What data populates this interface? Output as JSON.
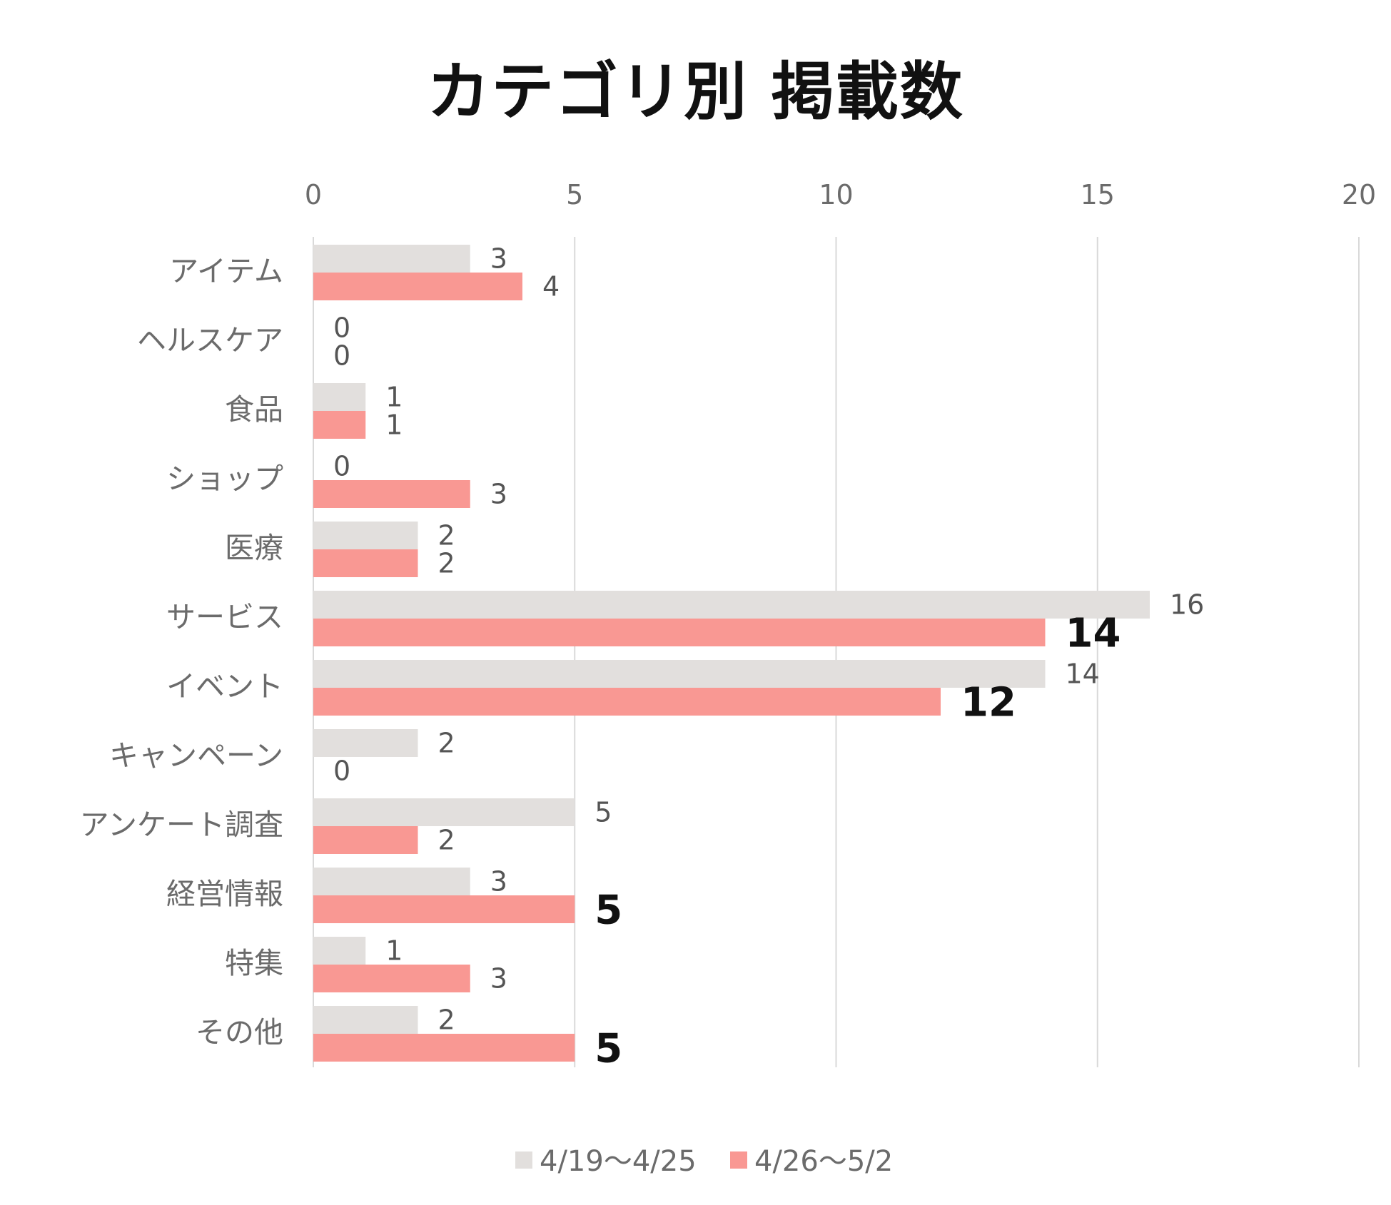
{
  "chart_data": {
    "type": "bar",
    "orientation": "horizontal",
    "title": "カテゴリ別 掲載数",
    "categories": [
      "アイテム",
      "ヘルスケア",
      "食品",
      "ショップ",
      "医療",
      "サービス",
      "イベント",
      "キャンペーン",
      "アンケート調査",
      "経営情報",
      "特集",
      "その他"
    ],
    "series": [
      {
        "name": "4/19〜4/25",
        "color": "#e2dfdd",
        "values": [
          3,
          0,
          1,
          0,
          2,
          16,
          14,
          2,
          5,
          3,
          1,
          2
        ]
      },
      {
        "name": "4/26〜5/2",
        "color": "#f99893",
        "values": [
          4,
          0,
          1,
          3,
          2,
          14,
          12,
          0,
          2,
          5,
          3,
          5
        ]
      }
    ],
    "bold_labels_series2": [
      false,
      false,
      false,
      false,
      false,
      true,
      true,
      false,
      false,
      true,
      false,
      true
    ],
    "xlim": [
      0,
      20
    ],
    "xticks": [
      0,
      5,
      10,
      15,
      20
    ],
    "x_axis_position": "top",
    "grid": true,
    "legend_position": "bottom"
  }
}
